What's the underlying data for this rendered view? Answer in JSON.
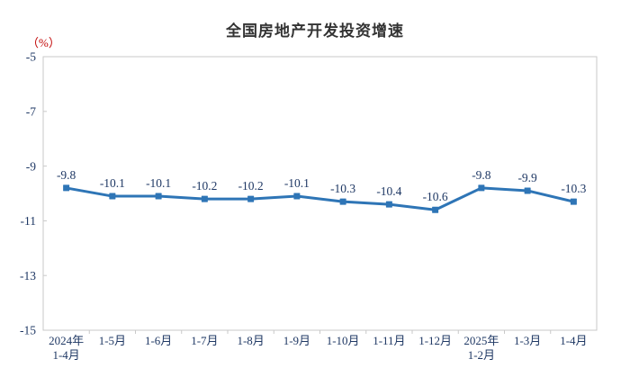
{
  "title": "全国房地产开发投资增速",
  "unit_label": "（%）",
  "chart_data": {
    "type": "line",
    "title": "全国房地产开发投资增速",
    "categories": [
      "2024年\n1-4月",
      "1-5月",
      "1-6月",
      "1-7月",
      "1-8月",
      "1-9月",
      "1-10月",
      "1-11月",
      "1-12月",
      "2025年\n1-2月",
      "1-3月",
      "1-4月"
    ],
    "values": [
      -9.8,
      -10.1,
      -10.1,
      -10.2,
      -10.2,
      -10.1,
      -10.3,
      -10.4,
      -10.6,
      -9.8,
      -9.9,
      -10.3
    ],
    "data_labels": [
      "-9.8",
      "-10.1",
      "-10.1",
      "-10.2",
      "-10.2",
      "-10.1",
      "-10.3",
      "-10.4",
      "-10.6",
      "-9.8",
      "-9.9",
      "-10.3"
    ],
    "xlabel": "",
    "ylabel": "（%）",
    "ylim": [
      -15,
      -5
    ],
    "yticks": [
      -5,
      -7,
      -9,
      -11,
      -13,
      -15
    ],
    "grid": false,
    "legend": "none"
  },
  "colors": {
    "line": "#2E75B6",
    "marker": "#2E75B6",
    "axis_text": "#1F3864",
    "data_label_text": "#1F3864",
    "unit_text": "#C00000",
    "plot_border": "#C9C9C9",
    "title_text": "#333333",
    "background": "#FFFFFF"
  }
}
